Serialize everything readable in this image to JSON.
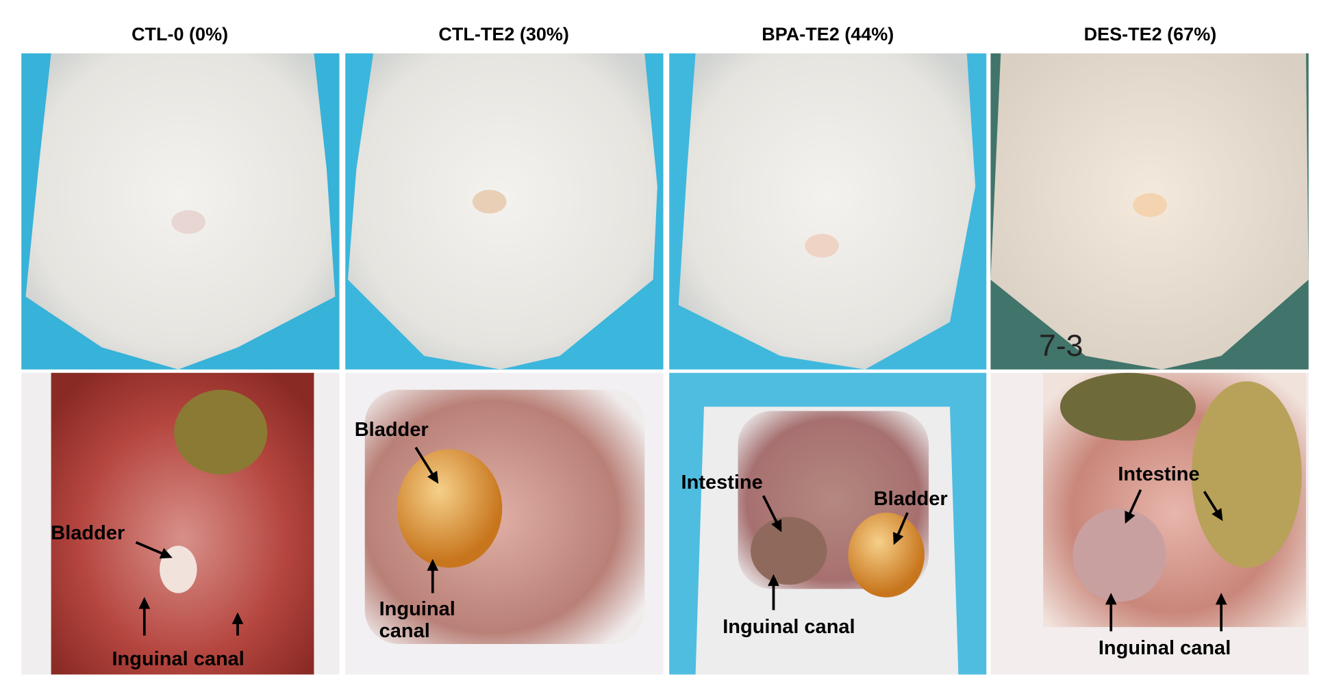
{
  "panels": [
    {
      "title": "CTL-0 (0%)",
      "annotations": [
        "Bladder",
        "Inguinal canal"
      ]
    },
    {
      "title": "CTL-TE2 (30%)",
      "annotations": [
        "Bladder",
        "Inguinal canal"
      ]
    },
    {
      "title": "BPA-TE2 (44%)",
      "annotations": [
        "Intestine",
        "Bladder",
        "Inguinal canal"
      ]
    },
    {
      "title": "DES-TE2 (67%)",
      "annotations": [
        "Intestine",
        "Inguinal canal"
      ],
      "photo_text": "7-3"
    }
  ]
}
